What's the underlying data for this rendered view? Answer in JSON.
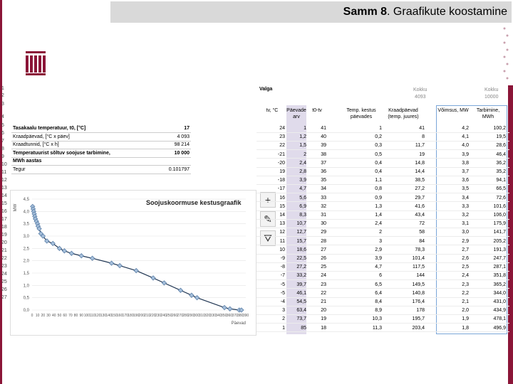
{
  "title": {
    "bold": "Samm 8",
    "rest": ". Graafikute koostamine"
  },
  "row_numbers": [
    "1",
    "2",
    "3",
    "4",
    "5",
    "6",
    "7",
    "8",
    "9",
    "10",
    "11",
    "12",
    "13",
    "14",
    "15",
    "16",
    "17",
    "18",
    "19",
    "20",
    "21",
    "22",
    "23",
    "24",
    "25",
    "26",
    "27"
  ],
  "left_table": [
    {
      "label": "Tasakaalu temperatuur, t0, [°C]",
      "value": "17",
      "bold": true
    },
    {
      "label": "Kraadpäevad, [°C x päev]",
      "value": "4 093",
      "bold": false
    },
    {
      "label": "Kraadtunnid, [°C x h]",
      "value": "98 214",
      "bold": false
    },
    {
      "label": "Temperatuurist sõltuv soojuse tarbimine,",
      "value": "10 000",
      "bold": true
    },
    {
      "label": "MWh aastas",
      "value": "",
      "bold": true
    },
    {
      "label": "Tegur",
      "value": "0.101797",
      "bold": false
    }
  ],
  "chart_data": {
    "type": "scatter",
    "title": "Soojuskoormuse kestusgraafik",
    "ylabel": "MW",
    "xlabel": "Päevad",
    "xlim": [
      0,
      390
    ],
    "ylim": [
      0,
      4.5
    ],
    "yticks": [
      "0,0",
      "0,5",
      "1,0",
      "1,5",
      "2,0",
      "2,5",
      "3,0",
      "3,5",
      "4,0",
      "4,5"
    ],
    "xticks": [
      "0",
      "10",
      "20",
      "30",
      "40",
      "50",
      "60",
      "70",
      "80",
      "90",
      "100",
      "110",
      "120",
      "130",
      "140",
      "150",
      "160",
      "170",
      "180",
      "190",
      "200",
      "210",
      "220",
      "230",
      "240",
      "250",
      "260",
      "270",
      "280",
      "290",
      "300",
      "310",
      "320",
      "330",
      "340",
      "350",
      "360",
      "370",
      "380",
      "390"
    ],
    "x": [
      1,
      2,
      3,
      4,
      5,
      6,
      8,
      10,
      11,
      13,
      16,
      20,
      27,
      38,
      50,
      59,
      72,
      90,
      110,
      145,
      160,
      190,
      221,
      241,
      271,
      291,
      301,
      351,
      361,
      378,
      382
    ],
    "y": [
      4.2,
      4.1,
      4.0,
      3.9,
      3.8,
      3.7,
      3.6,
      3.5,
      3.4,
      3.3,
      3.1,
      3.0,
      2.8,
      2.7,
      2.5,
      2.4,
      2.3,
      2.2,
      2.1,
      1.9,
      1.8,
      1.6,
      1.3,
      1.1,
      0.8,
      0.6,
      0.5,
      0.1,
      0.05,
      0.0,
      0.0
    ]
  },
  "tools": [
    "+",
    "✎",
    "⛛"
  ],
  "right": {
    "valga": "Valga",
    "kokku1_label": "Kokku",
    "kokku1_value": "4093",
    "kokku2_label": "Kokku",
    "kokku2_value": "10000",
    "headers": {
      "tv": "tv, °C",
      "paevade_arv": "Päevade arv",
      "t0_tv": "t0-tv",
      "temp_kestus": "Temp. kestus päevades",
      "kraadpaevad": "Kraadpäevad (temp. juures)",
      "voimsus": "Võimsus, MW",
      "tarbimine": "Tarbimine, MWh"
    },
    "rows": [
      [
        "24",
        "1",
        "41",
        "1",
        "41",
        "4,2",
        "100,2"
      ],
      [
        "23",
        "1,2",
        "40",
        "0,2",
        "8",
        "4,1",
        "19,5"
      ],
      [
        "22",
        "1,5",
        "39",
        "0,3",
        "11,7",
        "4,0",
        "28,6"
      ],
      [
        "-21",
        "2",
        "38",
        "0,5",
        "19",
        "3,9",
        "46,4"
      ],
      [
        "-20",
        "2,4",
        "37",
        "0,4",
        "14,8",
        "3,8",
        "36,2"
      ],
      [
        "19",
        "2,8",
        "36",
        "0,4",
        "14,4",
        "3,7",
        "35,2"
      ],
      [
        "-18",
        "3,9",
        "35",
        "1,1",
        "38,5",
        "3,6",
        "94,1"
      ],
      [
        "-17",
        "4,7",
        "34",
        "0,8",
        "27,2",
        "3,5",
        "66,5"
      ],
      [
        "16",
        "5,6",
        "33",
        "0,9",
        "29,7",
        "3,4",
        "72,6"
      ],
      [
        "15",
        "6,9",
        "32",
        "1,3",
        "41,6",
        "3,3",
        "101,6"
      ],
      [
        "14",
        "8,3",
        "31",
        "1,4",
        "43,4",
        "3,2",
        "106,0"
      ],
      [
        "13",
        "10,7",
        "30",
        "2,4",
        "72",
        "3,1",
        "175,9"
      ],
      [
        "12",
        "12,7",
        "29",
        "2",
        "58",
        "3,0",
        "141,7"
      ],
      [
        "11",
        "15,7",
        "28",
        "3",
        "84",
        "2,9",
        "205,2"
      ],
      [
        "10",
        "18,6",
        "27",
        "2,9",
        "78,3",
        "2,7",
        "191,3"
      ],
      [
        "-9",
        "22,5",
        "26",
        "3,9",
        "101,4",
        "2,6",
        "247,7"
      ],
      [
        "-8",
        "27,2",
        "25",
        "4,7",
        "117,5",
        "2,5",
        "287,1"
      ],
      [
        "-7",
        "33,2",
        "24",
        "6",
        "144",
        "2,4",
        "351,8"
      ],
      [
        "-5",
        "39,7",
        "23",
        "6,5",
        "149,5",
        "2,3",
        "365,2"
      ],
      [
        "-5",
        "46,1",
        "22",
        "6,4",
        "140,8",
        "2,2",
        "344,0"
      ],
      [
        "-4",
        "54,5",
        "21",
        "8,4",
        "176,4",
        "2,1",
        "431,0"
      ],
      [
        "3",
        "63,4",
        "20",
        "8,9",
        "178",
        "2,0",
        "434,9"
      ],
      [
        "2",
        "73,7",
        "19",
        "10,3",
        "195,7",
        "1,9",
        "478,1"
      ],
      [
        "1",
        "85",
        "18",
        "11,3",
        "203,4",
        "1,8",
        "496,9"
      ]
    ]
  },
  "colors": {
    "brand": "#8b1538",
    "highlight": "#e0dbeb",
    "outline": "#7aa6d8",
    "series": "#5b7fa8"
  }
}
